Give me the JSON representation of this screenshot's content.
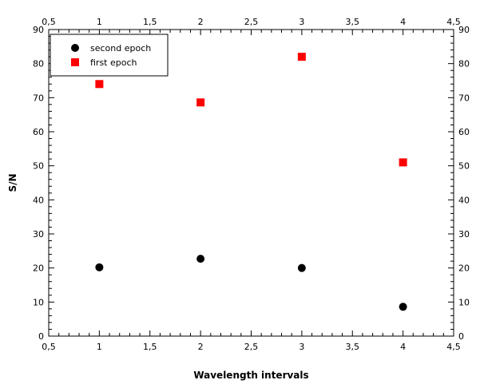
{
  "chart_data": {
    "type": "scatter",
    "title": "",
    "xlabel": "Wavelength intervals",
    "ylabel": "S/N",
    "xlim": [
      0.5,
      4.5
    ],
    "ylim": [
      0,
      90
    ],
    "x_ticks": [
      "0,5",
      "1",
      "1,5",
      "2",
      "2,5",
      "3",
      "3,5",
      "4",
      "4,5"
    ],
    "y_ticks": [
      "0",
      "10",
      "20",
      "30",
      "40",
      "50",
      "60",
      "70",
      "80",
      "90"
    ],
    "grid": false,
    "legend_position": "top-left",
    "series": [
      {
        "name": "second epoch",
        "marker": "circle",
        "color": "#000000",
        "x": [
          1,
          2,
          3,
          4
        ],
        "y": [
          20.2,
          22.7,
          20.0,
          8.6
        ]
      },
      {
        "name": "first epoch",
        "marker": "square",
        "color": "#ff0000",
        "x": [
          1,
          2,
          3,
          4
        ],
        "y": [
          74.0,
          68.6,
          82.0,
          51.0
        ]
      }
    ]
  }
}
